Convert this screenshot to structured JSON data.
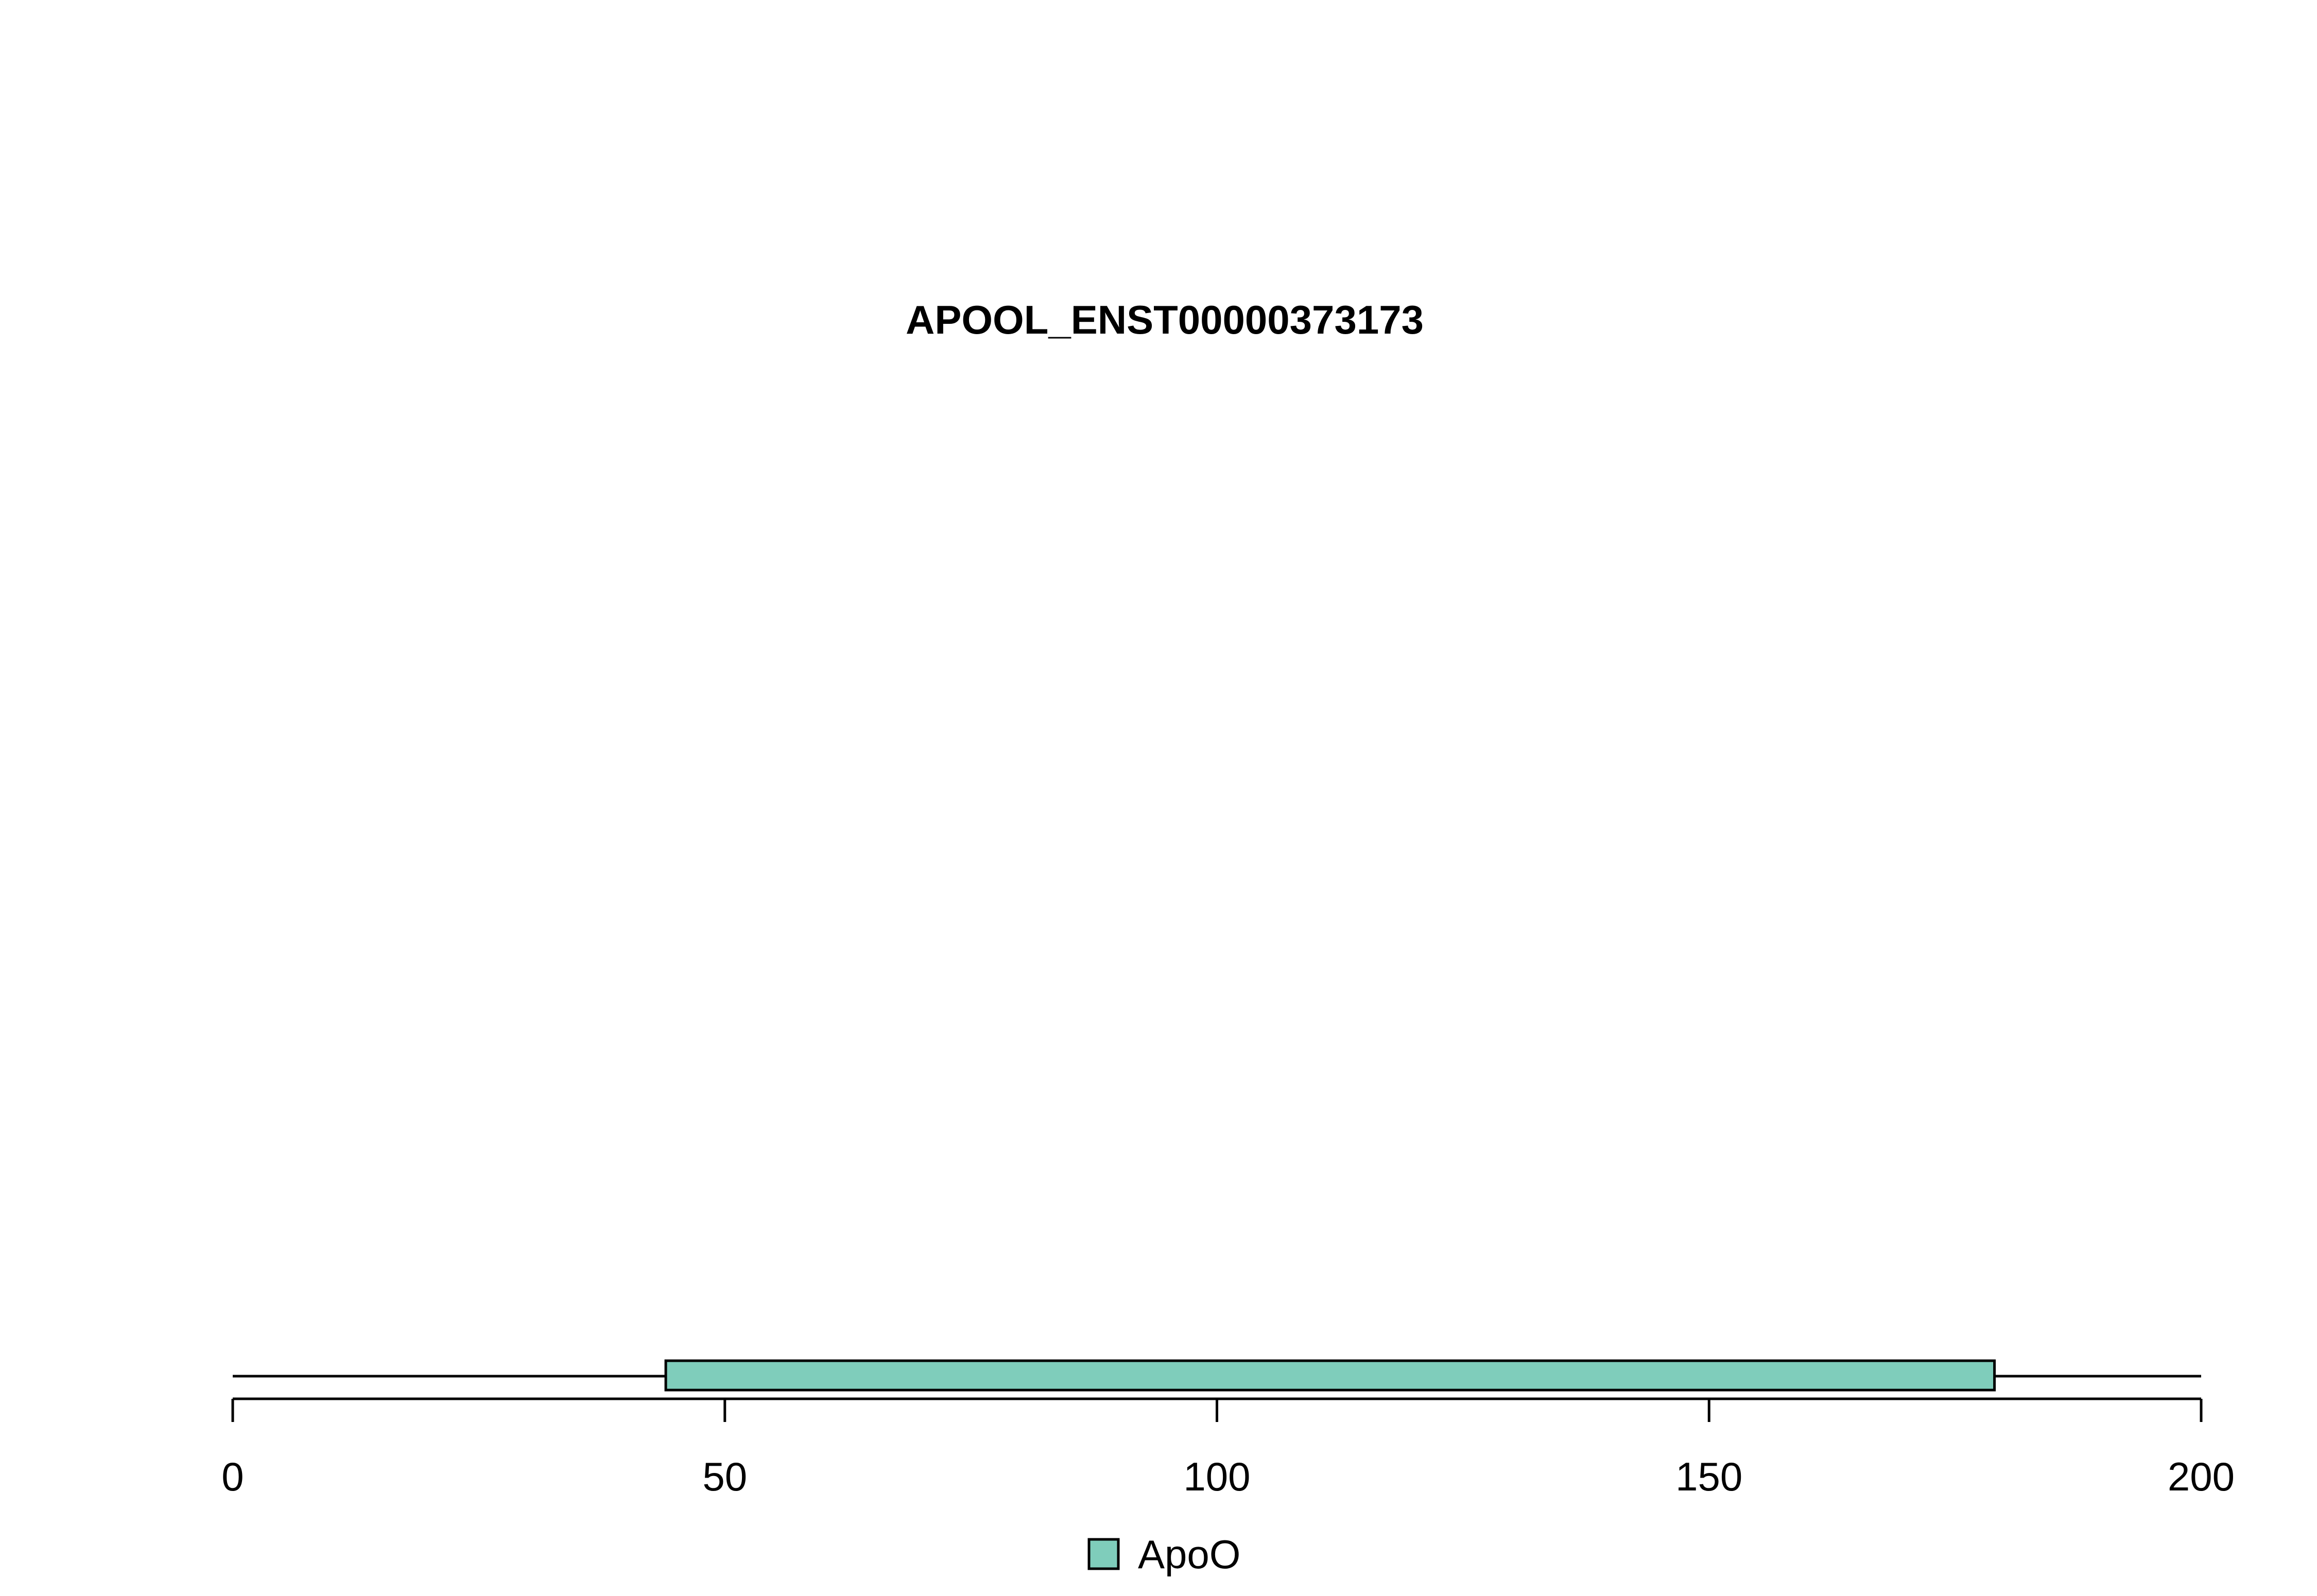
{
  "chart_data": {
    "type": "bar",
    "title": "APOOL_ENST00000373173",
    "xlabel": "",
    "ylabel": "",
    "xlim": [
      0,
      200
    ],
    "backbone": {
      "start": 0,
      "end": 200
    },
    "x_ticks": [
      0,
      50,
      100,
      150,
      200
    ],
    "x_tick_labels": [
      "0",
      "50",
      "100",
      "150",
      "200"
    ],
    "domains": [
      {
        "name": "ApoO",
        "start": 44,
        "end": 179,
        "color": "#7FCDBB"
      }
    ],
    "legend": {
      "position": "bottom-center",
      "entries": [
        {
          "label": "ApoO",
          "color": "#7FCDBB"
        }
      ]
    },
    "grid": false
  }
}
